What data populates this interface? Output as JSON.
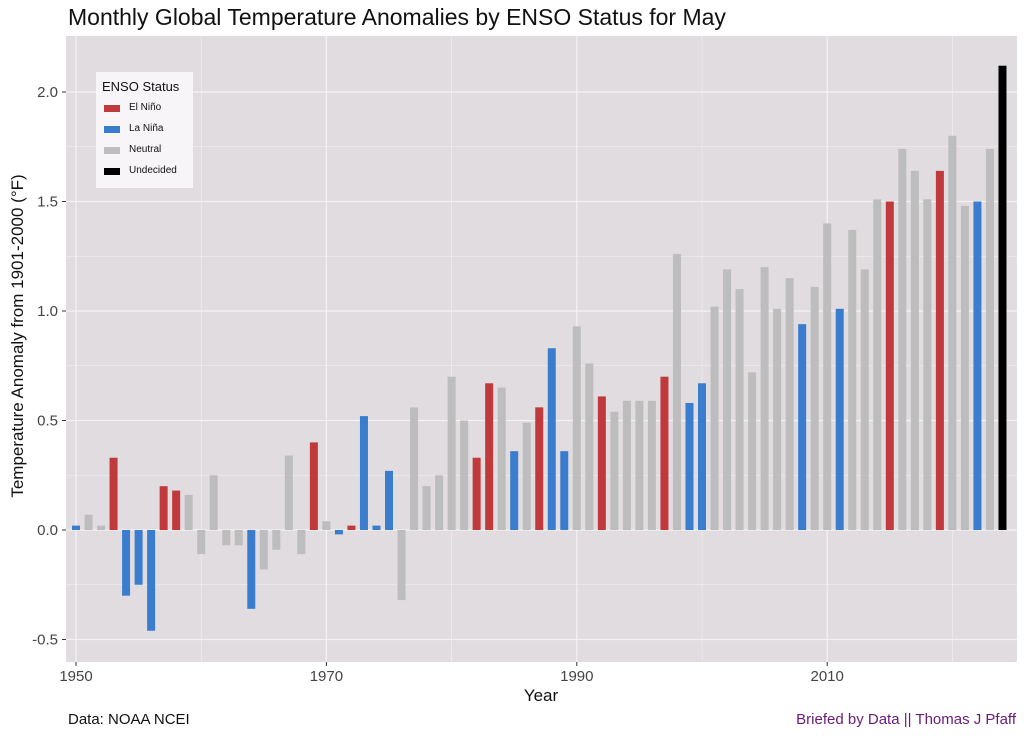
{
  "title": "Monthly Global Temperature Anomalies by ENSO Status for May",
  "caption_left": "Data: NOAA NCEI",
  "caption_right": "Briefed by Data || Thomas J Pfaff",
  "colors": {
    "El Niño": "#c0393b",
    "La Niña": "#3a7dcf",
    "Neutral": "#bdbdbd",
    "Undecided": "#000000",
    "panel": "#e0dcdf",
    "grid": "#f4f2f4"
  },
  "chart_data": {
    "type": "bar",
    "title": "Monthly Global Temperature Anomalies by ENSO Status for May",
    "xlabel": "Year",
    "ylabel": "Temperature Anomaly from 1901-2000  (°F)",
    "xlim": [
      1950,
      2024
    ],
    "ylim": [
      -0.5,
      2.2
    ],
    "x_ticks": [
      1950,
      1970,
      1990,
      2010
    ],
    "y_ticks": [
      -0.5,
      0.0,
      0.5,
      1.0,
      1.5,
      2.0
    ],
    "y_tick_labels": [
      "-0.5",
      "0.0",
      "0.5",
      "1.0",
      "1.5",
      "2.0"
    ],
    "grid": true,
    "legend": {
      "title": "ENSO Status",
      "position": "top-left",
      "entries": [
        "El Niño",
        "La Niña",
        "Neutral",
        "Undecided"
      ]
    },
    "bars": [
      {
        "year": 1950,
        "value": 0.02,
        "status": "La Niña"
      },
      {
        "year": 1951,
        "value": 0.07,
        "status": "Neutral"
      },
      {
        "year": 1952,
        "value": 0.02,
        "status": "Neutral"
      },
      {
        "year": 1953,
        "value": 0.33,
        "status": "El Niño"
      },
      {
        "year": 1954,
        "value": -0.3,
        "status": "La Niña"
      },
      {
        "year": 1955,
        "value": -0.25,
        "status": "La Niña"
      },
      {
        "year": 1956,
        "value": -0.46,
        "status": "La Niña"
      },
      {
        "year": 1957,
        "value": 0.2,
        "status": "El Niño"
      },
      {
        "year": 1958,
        "value": 0.18,
        "status": "El Niño"
      },
      {
        "year": 1959,
        "value": 0.16,
        "status": "Neutral"
      },
      {
        "year": 1960,
        "value": -0.11,
        "status": "Neutral"
      },
      {
        "year": 1961,
        "value": 0.25,
        "status": "Neutral"
      },
      {
        "year": 1962,
        "value": -0.07,
        "status": "Neutral"
      },
      {
        "year": 1963,
        "value": -0.07,
        "status": "Neutral"
      },
      {
        "year": 1964,
        "value": -0.36,
        "status": "La Niña"
      },
      {
        "year": 1965,
        "value": -0.18,
        "status": "Neutral"
      },
      {
        "year": 1966,
        "value": -0.09,
        "status": "Neutral"
      },
      {
        "year": 1967,
        "value": 0.34,
        "status": "Neutral"
      },
      {
        "year": 1968,
        "value": -0.11,
        "status": "Neutral"
      },
      {
        "year": 1969,
        "value": 0.4,
        "status": "El Niño"
      },
      {
        "year": 1970,
        "value": 0.04,
        "status": "Neutral"
      },
      {
        "year": 1971,
        "value": -0.02,
        "status": "La Niña"
      },
      {
        "year": 1972,
        "value": 0.02,
        "status": "El Niño"
      },
      {
        "year": 1973,
        "value": 0.52,
        "status": "La Niña"
      },
      {
        "year": 1974,
        "value": 0.02,
        "status": "La Niña"
      },
      {
        "year": 1975,
        "value": 0.27,
        "status": "La Niña"
      },
      {
        "year": 1976,
        "value": -0.32,
        "status": "Neutral"
      },
      {
        "year": 1977,
        "value": 0.56,
        "status": "Neutral"
      },
      {
        "year": 1978,
        "value": 0.2,
        "status": "Neutral"
      },
      {
        "year": 1979,
        "value": 0.25,
        "status": "Neutral"
      },
      {
        "year": 1980,
        "value": 0.7,
        "status": "Neutral"
      },
      {
        "year": 1981,
        "value": 0.5,
        "status": "Neutral"
      },
      {
        "year": 1982,
        "value": 0.33,
        "status": "El Niño"
      },
      {
        "year": 1983,
        "value": 0.67,
        "status": "El Niño"
      },
      {
        "year": 1984,
        "value": 0.65,
        "status": "Neutral"
      },
      {
        "year": 1985,
        "value": 0.36,
        "status": "La Niña"
      },
      {
        "year": 1986,
        "value": 0.49,
        "status": "Neutral"
      },
      {
        "year": 1987,
        "value": 0.56,
        "status": "El Niño"
      },
      {
        "year": 1988,
        "value": 0.83,
        "status": "La Niña"
      },
      {
        "year": 1989,
        "value": 0.36,
        "status": "La Niña"
      },
      {
        "year": 1990,
        "value": 0.93,
        "status": "Neutral"
      },
      {
        "year": 1991,
        "value": 0.76,
        "status": "Neutral"
      },
      {
        "year": 1992,
        "value": 0.61,
        "status": "El Niño"
      },
      {
        "year": 1993,
        "value": 0.54,
        "status": "Neutral"
      },
      {
        "year": 1994,
        "value": 0.59,
        "status": "Neutral"
      },
      {
        "year": 1995,
        "value": 0.59,
        "status": "Neutral"
      },
      {
        "year": 1996,
        "value": 0.59,
        "status": "Neutral"
      },
      {
        "year": 1997,
        "value": 0.7,
        "status": "El Niño"
      },
      {
        "year": 1998,
        "value": 1.26,
        "status": "Neutral"
      },
      {
        "year": 1999,
        "value": 0.58,
        "status": "La Niña"
      },
      {
        "year": 2000,
        "value": 0.67,
        "status": "La Niña"
      },
      {
        "year": 2001,
        "value": 1.02,
        "status": "Neutral"
      },
      {
        "year": 2002,
        "value": 1.19,
        "status": "Neutral"
      },
      {
        "year": 2003,
        "value": 1.1,
        "status": "Neutral"
      },
      {
        "year": 2004,
        "value": 0.72,
        "status": "Neutral"
      },
      {
        "year": 2005,
        "value": 1.2,
        "status": "Neutral"
      },
      {
        "year": 2006,
        "value": 1.01,
        "status": "Neutral"
      },
      {
        "year": 2007,
        "value": 1.15,
        "status": "Neutral"
      },
      {
        "year": 2008,
        "value": 0.94,
        "status": "La Niña"
      },
      {
        "year": 2009,
        "value": 1.11,
        "status": "Neutral"
      },
      {
        "year": 2010,
        "value": 1.4,
        "status": "Neutral"
      },
      {
        "year": 2011,
        "value": 1.01,
        "status": "La Niña"
      },
      {
        "year": 2012,
        "value": 1.37,
        "status": "Neutral"
      },
      {
        "year": 2013,
        "value": 1.19,
        "status": "Neutral"
      },
      {
        "year": 2014,
        "value": 1.51,
        "status": "Neutral"
      },
      {
        "year": 2015,
        "value": 1.5,
        "status": "El Niño"
      },
      {
        "year": 2016,
        "value": 1.74,
        "status": "Neutral"
      },
      {
        "year": 2017,
        "value": 1.64,
        "status": "Neutral"
      },
      {
        "year": 2018,
        "value": 1.51,
        "status": "Neutral"
      },
      {
        "year": 2019,
        "value": 1.64,
        "status": "El Niño"
      },
      {
        "year": 2020,
        "value": 1.8,
        "status": "Neutral"
      },
      {
        "year": 2021,
        "value": 1.48,
        "status": "Neutral"
      },
      {
        "year": 2022,
        "value": 1.5,
        "status": "La Niña"
      },
      {
        "year": 2023,
        "value": 1.74,
        "status": "Neutral"
      },
      {
        "year": 2024,
        "value": 2.12,
        "status": "Undecided"
      }
    ]
  }
}
